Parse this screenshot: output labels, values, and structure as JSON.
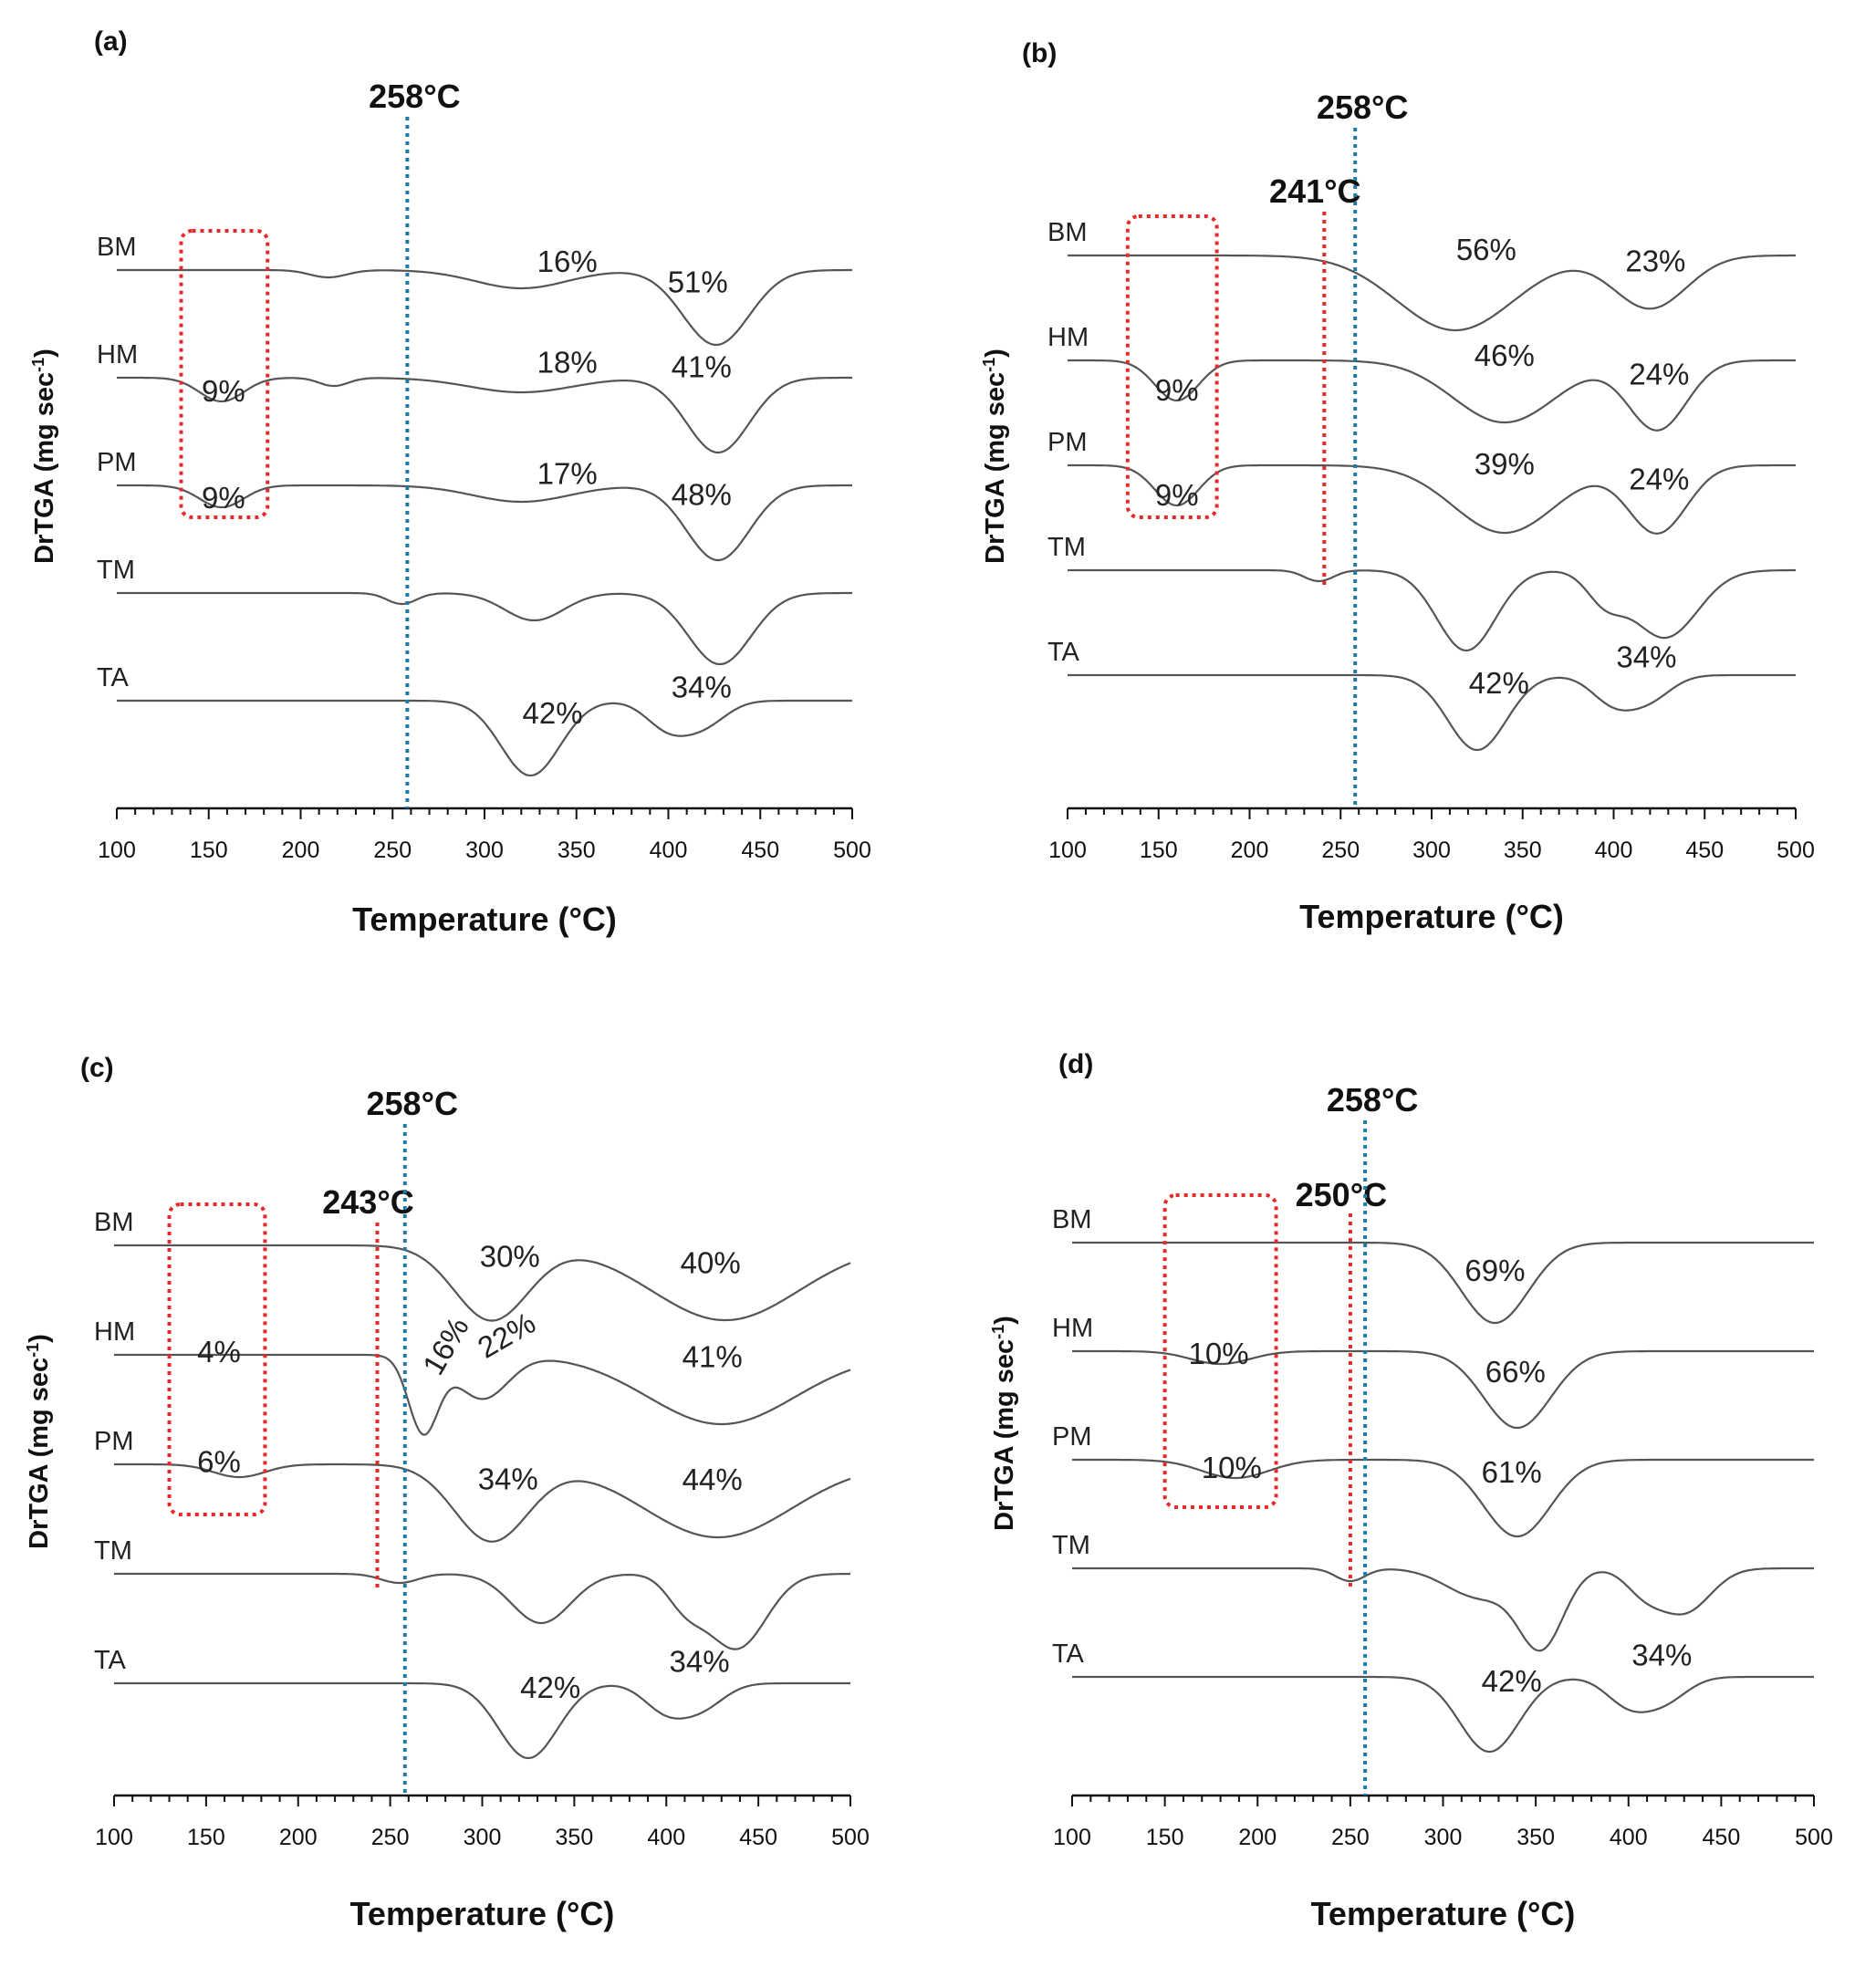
{
  "chart_data": [
    {
      "type": "line",
      "panel": "(a)",
      "xlabel": "Temperature (°C)",
      "ylabel": "DrTGA (mg sec",
      "ylabel_sup": "-1",
      "ylabel_end": ")",
      "xlim": [
        100,
        500
      ],
      "xticks": [
        "100",
        "150",
        "200",
        "250",
        "300",
        "350",
        "400",
        "450",
        "500"
      ],
      "blue_marker": {
        "x": 258,
        "label": "258°C"
      },
      "red_box": {
        "x0": 135,
        "x1": 182
      },
      "series": [
        {
          "name": "BM",
          "offset": 0,
          "peaks": [
            {
              "x": 215,
              "d": 8,
              "w": 10
            },
            {
              "x": 320,
              "d": 20,
              "w": 25
            },
            {
              "x": 426,
              "d": 82,
              "w": 18
            }
          ],
          "labels": [
            {
              "text": "16%",
              "x": 345,
              "dy": -2
            },
            {
              "text": "51%",
              "x": 416,
              "dy": 34
            }
          ]
        },
        {
          "name": "HM",
          "offset": 1,
          "peaks": [
            {
              "x": 157,
              "d": 26,
              "w": 12
            },
            {
              "x": 218,
              "d": 9,
              "w": 8
            },
            {
              "x": 320,
              "d": 16,
              "w": 28
            },
            {
              "x": 427,
              "d": 82,
              "w": 17
            }
          ],
          "labels": [
            {
              "text": "9%",
              "x": 158,
              "dy": -12
            },
            {
              "text": "18%",
              "x": 345,
              "dy": 4
            },
            {
              "text": "41%",
              "x": 418,
              "dy": 60
            }
          ]
        },
        {
          "name": "PM",
          "offset": 2,
          "peaks": [
            {
              "x": 157,
              "d": 24,
              "w": 12
            },
            {
              "x": 320,
              "d": 18,
              "w": 26
            },
            {
              "x": 427,
              "d": 82,
              "w": 17
            }
          ],
          "labels": [
            {
              "text": "9%",
              "x": 158,
              "dy": -13
            },
            {
              "text": "17%",
              "x": 345,
              "dy": 1
            },
            {
              "text": "48%",
              "x": 418,
              "dy": 38
            }
          ]
        },
        {
          "name": "TM",
          "offset": 3,
          "peaks": [
            {
              "x": 255,
              "d": 12,
              "w": 8
            },
            {
              "x": 327,
              "d": 30,
              "w": 16
            },
            {
              "x": 428,
              "d": 78,
              "w": 17
            }
          ],
          "labels": []
        },
        {
          "name": "TA",
          "offset": 4,
          "peaks": [
            {
              "x": 325,
              "d": 82,
              "w": 16
            },
            {
              "x": 400,
              "d": 30,
              "w": 12
            },
            {
              "x": 420,
              "d": 24,
              "w": 12
            }
          ],
          "labels": [
            {
              "text": "42%",
              "x": 337,
              "dy": 25
            },
            {
              "text": "34%",
              "x": 418,
              "dy": 25
            }
          ]
        }
      ]
    },
    {
      "type": "line",
      "panel": "(b)",
      "xlabel": "Temperature (°C)",
      "ylabel": "DrTGA (mg sec",
      "ylabel_sup": "-1",
      "ylabel_end": ")",
      "xlim": [
        100,
        500
      ],
      "xticks": [
        "100",
        "150",
        "200",
        "250",
        "300",
        "350",
        "400",
        "450",
        "500"
      ],
      "blue_marker": {
        "x": 258,
        "label": "258°C"
      },
      "red_marker": {
        "x": 241,
        "label": "241°C"
      },
      "red_box": {
        "x0": 133,
        "x1": 182
      },
      "series": [
        {
          "name": "BM",
          "offset": 0,
          "peaks": [
            {
              "x": 313,
              "d": 82,
              "w": 32
            },
            {
              "x": 420,
              "d": 58,
              "w": 20
            }
          ],
          "labels": [
            {
              "text": "56%",
              "x": 330,
              "dy": 54
            },
            {
              "text": "23%",
              "x": 423,
              "dy": 28
            }
          ]
        },
        {
          "name": "HM",
          "offset": 1,
          "peaks": [
            {
              "x": 160,
              "d": 44,
              "w": 12
            },
            {
              "x": 340,
              "d": 68,
              "w": 28
            },
            {
              "x": 424,
              "d": 76,
              "w": 16
            }
          ],
          "labels": [
            {
              "text": "9%",
              "x": 160,
              "dy": -12
            },
            {
              "text": "46%",
              "x": 340,
              "dy": 50
            },
            {
              "text": "24%",
              "x": 425,
              "dy": 38
            }
          ]
        },
        {
          "name": "PM",
          "offset": 2,
          "peaks": [
            {
              "x": 160,
              "d": 44,
              "w": 12
            },
            {
              "x": 340,
              "d": 74,
              "w": 28
            },
            {
              "x": 424,
              "d": 74,
              "w": 16
            }
          ],
          "labels": [
            {
              "text": "9%",
              "x": 160,
              "dy": -12
            },
            {
              "text": "39%",
              "x": 340,
              "dy": 52
            },
            {
              "text": "24%",
              "x": 425,
              "dy": 36
            }
          ]
        },
        {
          "name": "TM",
          "offset": 3,
          "peaks": [
            {
              "x": 238,
              "d": 12,
              "w": 8
            },
            {
              "x": 319,
              "d": 88,
              "w": 16
            },
            {
              "x": 395,
              "d": 30,
              "w": 10
            },
            {
              "x": 428,
              "d": 74,
              "w": 18
            }
          ],
          "labels": []
        },
        {
          "name": "TA",
          "offset": 4,
          "peaks": [
            {
              "x": 325,
              "d": 82,
              "w": 16
            },
            {
              "x": 400,
              "d": 30,
              "w": 12
            },
            {
              "x": 420,
              "d": 24,
              "w": 12
            }
          ],
          "labels": [
            {
              "text": "42%",
              "x": 337,
              "dy": 30
            },
            {
              "text": "34%",
              "x": 418,
              "dy": 30
            }
          ]
        }
      ]
    },
    {
      "type": "line",
      "panel": "(c)",
      "xlabel": "Temperature (°C)",
      "ylabel": "DrTGA (mg sec",
      "ylabel_sup": "-1",
      "ylabel_end": ")",
      "xlim": [
        100,
        500
      ],
      "xticks": [
        "100",
        "150",
        "200",
        "250",
        "300",
        "350",
        "400",
        "450",
        "500"
      ],
      "blue_marker": {
        "x": 258,
        "label": "258°C"
      },
      "red_marker": {
        "x": 243,
        "label": "243°C"
      },
      "red_box": {
        "x0": 130,
        "x1": 182
      },
      "series": [
        {
          "name": "BM",
          "offset": 0,
          "peaks": [
            {
              "x": 305,
              "d": 82,
              "w": 20
            },
            {
              "x": 432,
              "d": 82,
              "w": 40
            }
          ],
          "labels": [
            {
              "text": "30%",
              "x": 315,
              "dy": 38
            },
            {
              "text": "40%",
              "x": 424,
              "dy": 38
            }
          ]
        },
        {
          "name": "HM",
          "offset": 1,
          "peaks": [
            {
              "x": 268,
              "d": 84,
              "w": 8
            },
            {
              "x": 300,
              "d": 48,
              "w": 14
            },
            {
              "x": 430,
              "d": 76,
              "w": 40
            }
          ],
          "labels": [
            {
              "text": "4%",
              "x": 157,
              "dy": -20
            },
            {
              "text": "16%",
              "x": 285,
              "dy": 28,
              "rot": -60
            },
            {
              "text": "22%",
              "x": 316,
              "dy": 26,
              "rot": -30
            },
            {
              "text": "41%",
              "x": 425,
              "dy": 50
            }
          ]
        },
        {
          "name": "PM",
          "offset": 2,
          "peaks": [
            {
              "x": 168,
              "d": 14,
              "w": 14
            },
            {
              "x": 305,
              "d": 84,
              "w": 20
            },
            {
              "x": 428,
              "d": 80,
              "w": 40
            }
          ],
          "labels": [
            {
              "text": "6%",
              "x": 157,
              "dy": -10
            },
            {
              "text": "34%",
              "x": 314,
              "dy": 38
            },
            {
              "text": "44%",
              "x": 425,
              "dy": 40
            }
          ]
        },
        {
          "name": "TM",
          "offset": 3,
          "peaks": [
            {
              "x": 255,
              "d": 10,
              "w": 10
            },
            {
              "x": 332,
              "d": 54,
              "w": 16
            },
            {
              "x": 410,
              "d": 30,
              "w": 10
            },
            {
              "x": 438,
              "d": 82,
              "w": 16
            }
          ],
          "labels": []
        },
        {
          "name": "TA",
          "offset": 4,
          "peaks": [
            {
              "x": 325,
              "d": 82,
              "w": 16
            },
            {
              "x": 400,
              "d": 30,
              "w": 12
            },
            {
              "x": 420,
              "d": 24,
              "w": 12
            }
          ],
          "labels": [
            {
              "text": "42%",
              "x": 337,
              "dy": 34
            },
            {
              "text": "34%",
              "x": 418,
              "dy": 34
            }
          ]
        }
      ]
    },
    {
      "type": "line",
      "panel": "(d)",
      "xlabel": "Temperature (°C)",
      "ylabel": "DrTGA (mg sec",
      "ylabel_sup": "-1",
      "ylabel_end": ")",
      "xlim": [
        100,
        500
      ],
      "xticks": [
        "100",
        "150",
        "200",
        "250",
        "300",
        "350",
        "400",
        "450",
        "500"
      ],
      "blue_marker": {
        "x": 258,
        "label": "258°C"
      },
      "red_marker": {
        "x": 250,
        "label": "250°C"
      },
      "red_box": {
        "x0": 150,
        "x1": 210
      },
      "series": [
        {
          "name": "BM",
          "offset": 0,
          "peaks": [
            {
              "x": 328,
              "d": 88,
              "w": 18
            }
          ],
          "labels": [
            {
              "text": "69%",
              "x": 328,
              "dy": 34
            }
          ]
        },
        {
          "name": "HM",
          "offset": 1,
          "peaks": [
            {
              "x": 180,
              "d": 14,
              "w": 16
            },
            {
              "x": 340,
              "d": 84,
              "w": 18
            }
          ],
          "labels": [
            {
              "text": "10%",
              "x": 179,
              "dy": -12
            },
            {
              "text": "66%",
              "x": 339,
              "dy": 38
            }
          ]
        },
        {
          "name": "PM",
          "offset": 2,
          "peaks": [
            {
              "x": 188,
              "d": 20,
              "w": 18
            },
            {
              "x": 340,
              "d": 84,
              "w": 18
            }
          ],
          "labels": [
            {
              "text": "10%",
              "x": 186,
              "dy": -12
            },
            {
              "text": "61%",
              "x": 337,
              "dy": 46
            }
          ]
        },
        {
          "name": "TM",
          "offset": 3,
          "peaks": [
            {
              "x": 250,
              "d": 14,
              "w": 8
            },
            {
              "x": 320,
              "d": 32,
              "w": 18
            },
            {
              "x": 353,
              "d": 84,
              "w": 12
            },
            {
              "x": 408,
              "d": 22,
              "w": 10
            },
            {
              "x": 430,
              "d": 48,
              "w": 14
            }
          ],
          "labels": []
        },
        {
          "name": "TA",
          "offset": 4,
          "peaks": [
            {
              "x": 325,
              "d": 82,
              "w": 16
            },
            {
              "x": 400,
              "d": 30,
              "w": 12
            },
            {
              "x": 420,
              "d": 24,
              "w": 12
            }
          ],
          "labels": [
            {
              "text": "42%",
              "x": 337,
              "dy": 34
            },
            {
              "text": "34%",
              "x": 418,
              "dy": 34
            }
          ]
        }
      ]
    }
  ]
}
